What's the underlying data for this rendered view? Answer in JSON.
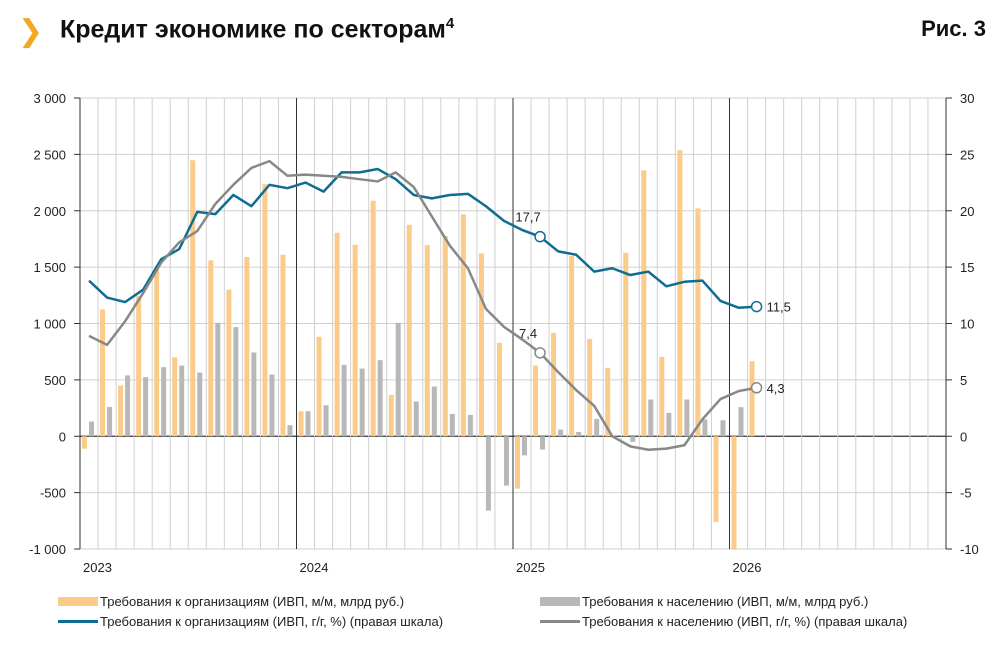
{
  "header": {
    "chevron_icon": "chevron-right-icon",
    "title": "Кредит экономике по секторам",
    "title_sup": "4",
    "figure_label": "Рис. 3"
  },
  "colors": {
    "org_bar": "#fbcb8a",
    "pop_bar": "#b8b8b8",
    "org_line": "#0f6d93",
    "pop_line": "#888888",
    "accent": "#f5a623"
  },
  "legend": [
    {
      "label": "Требования к организациям (ИВП, м/м, млрд руб.)",
      "kind": "bar",
      "color": "#fbcb8a"
    },
    {
      "label": "Требования к населению (ИВП, м/м, млрд руб.)",
      "kind": "bar",
      "color": "#b8b8b8"
    },
    {
      "label": "Требования к организациям (ИВП, г/г, %) (правая шкала)",
      "kind": "line",
      "color": "#0f6d93"
    },
    {
      "label": "Требования к населению (ИВП, г/г, %) (правая шкала)",
      "kind": "line",
      "color": "#888888"
    }
  ],
  "chart_data": {
    "type": "bar+line",
    "x_start": "2023-01",
    "x_end": "2026-12",
    "frequency": "monthly",
    "x_tick_labels": [
      "2023",
      "2024",
      "2025",
      "2026"
    ],
    "left_axis": {
      "ylim": [
        -1000,
        3000
      ],
      "ticks": [
        -1000,
        -500,
        0,
        500,
        1000,
        1500,
        2000,
        2500,
        3000
      ],
      "tick_labels": [
        "-1 000",
        "-500",
        "0",
        "500",
        "1 000",
        "1 500",
        "2 000",
        "2 500",
        "3 000"
      ]
    },
    "right_axis": {
      "ylim": [
        -10,
        30
      ],
      "ticks": [
        -10,
        -5,
        0,
        5,
        10,
        15,
        20,
        25,
        30
      ],
      "tick_labels": [
        "-10",
        "-5",
        "0",
        "5",
        "10",
        "15",
        "20",
        "25",
        "30"
      ]
    },
    "grid": true,
    "legend_placement": "bottom",
    "bars": [
      {
        "name": "Требования к организациям (ИВП, м/м, млрд руб.)",
        "axis": "left",
        "values": [
          -110,
          1125,
          450,
          1243,
          1480,
          700,
          2448,
          1560,
          1300,
          1590,
          2235,
          1610,
          222,
          882,
          1805,
          1698,
          2089,
          367,
          1876,
          1696,
          1776,
          1968,
          1622,
          829,
          -465,
          627,
          917,
          1598,
          864,
          607,
          1628,
          2359,
          704,
          2537,
          2021,
          -760,
          -1006,
          666
        ]
      },
      {
        "name": "Требования к населению (ИВП, м/м, млрд руб.)",
        "axis": "left",
        "values": [
          130,
          260,
          540,
          524,
          613,
          627,
          565,
          1006,
          968,
          743,
          548,
          98,
          222,
          275,
          633,
          600,
          675,
          1006,
          308,
          441,
          198,
          189,
          -660,
          -438,
          -169,
          -118,
          59,
          38,
          154,
          5,
          -50,
          326,
          207,
          326,
          148,
          142,
          258,
          null
        ]
      }
    ],
    "lines": [
      {
        "name": "Требования к организациям (ИВП, г/г, %) (правая шкала)",
        "axis": "right",
        "values": [
          13.8,
          12.3,
          11.9,
          13.0,
          15.7,
          16.6,
          19.9,
          19.7,
          21.4,
          20.4,
          22.3,
          22.0,
          22.5,
          21.7,
          23.4,
          23.4,
          23.7,
          22.8,
          21.4,
          21.1,
          21.4,
          21.5,
          20.4,
          19.1,
          18.3,
          17.7,
          16.4,
          16.1,
          14.6,
          14.9,
          14.3,
          14.6,
          13.3,
          13.7,
          13.8,
          12.0,
          11.4,
          11.5
        ],
        "annotations": [
          {
            "month": "2025-02",
            "label": "17,7"
          },
          {
            "month": "2026-02",
            "label": "11,5"
          }
        ]
      },
      {
        "name": "Требования к населению (ИВП, г/г, %) (правая шкала)",
        "axis": "right",
        "values": [
          8.9,
          8.1,
          10.2,
          12.7,
          15.4,
          17.2,
          18.2,
          20.6,
          22.3,
          23.8,
          24.4,
          23.1,
          23.2,
          23.1,
          23.0,
          22.8,
          22.6,
          23.4,
          22.1,
          19.5,
          16.9,
          14.9,
          11.3,
          9.7,
          8.6,
          7.4,
          5.7,
          4.1,
          2.7,
          0.0,
          -0.9,
          -1.2,
          -1.1,
          -0.8,
          1.5,
          3.3,
          4.0,
          4.3
        ],
        "annotations": [
          {
            "month": "2025-02",
            "label": "7,4"
          },
          {
            "month": "2026-02",
            "label": "4,3"
          }
        ]
      }
    ]
  }
}
